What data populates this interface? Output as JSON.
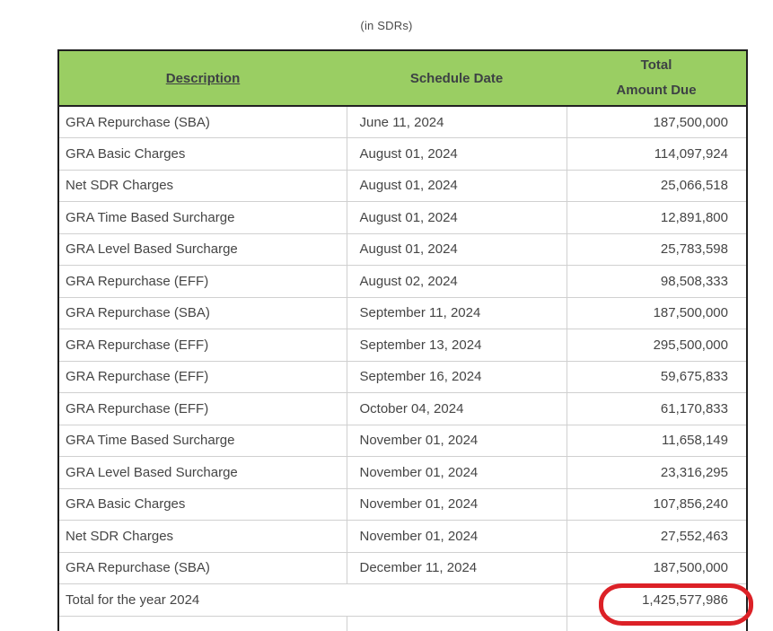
{
  "page": {
    "title": "(in SDRs)"
  },
  "table": {
    "headers": {
      "description": "Description",
      "schedule_date": "Schedule Date",
      "total_line1": "Total",
      "total_line2": "Amount Due"
    },
    "rows": [
      {
        "description": "GRA Repurchase (SBA)",
        "date": "June 11, 2024",
        "amount": "187,500,000"
      },
      {
        "description": "GRA Basic Charges",
        "date": "August 01, 2024",
        "amount": "114,097,924"
      },
      {
        "description": "Net SDR Charges",
        "date": "August 01, 2024",
        "amount": "25,066,518"
      },
      {
        "description": "GRA Time Based Surcharge",
        "date": "August 01, 2024",
        "amount": "12,891,800"
      },
      {
        "description": "GRA Level Based Surcharge",
        "date": "August 01, 2024",
        "amount": "25,783,598"
      },
      {
        "description": "GRA Repurchase (EFF)",
        "date": "August 02, 2024",
        "amount": "98,508,333"
      },
      {
        "description": "GRA Repurchase (SBA)",
        "date": "September 11, 2024",
        "amount": "187,500,000"
      },
      {
        "description": "GRA Repurchase (EFF)",
        "date": "September 13, 2024",
        "amount": "295,500,000"
      },
      {
        "description": "GRA Repurchase (EFF)",
        "date": "September 16, 2024",
        "amount": "59,675,833"
      },
      {
        "description": "GRA Repurchase (EFF)",
        "date": "October 04, 2024",
        "amount": "61,170,833"
      },
      {
        "description": "GRA Time Based Surcharge",
        "date": "November 01, 2024",
        "amount": "11,658,149"
      },
      {
        "description": "GRA Level Based Surcharge",
        "date": "November 01, 2024",
        "amount": "23,316,295"
      },
      {
        "description": "GRA Basic Charges",
        "date": "November 01, 2024",
        "amount": "107,856,240"
      },
      {
        "description": "Net SDR Charges",
        "date": "November 01, 2024",
        "amount": "27,552,463"
      },
      {
        "description": "GRA Repurchase (SBA)",
        "date": "December 11, 2024",
        "amount": "187,500,000"
      }
    ],
    "total_row": {
      "label": "Total for the year 2024",
      "amount": "1,425,577,986"
    }
  },
  "annotation": {
    "type": "hand-drawn red ellipse highlighting total amount"
  },
  "colors": {
    "header_bg": "#9ACE63",
    "header_text": "#3D4144",
    "body_text": "#454545",
    "grid_line": "#D0D0D0",
    "outer_border": "#1F1F1F",
    "annotation_red": "#DC2127"
  }
}
